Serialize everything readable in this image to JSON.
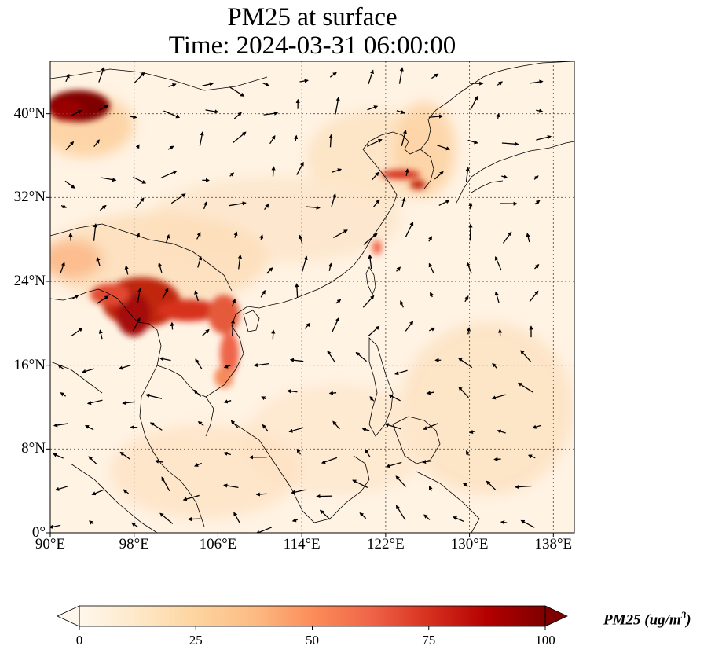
{
  "figure": {
    "title_line1": "PM25 at surface",
    "title_line2": "Time: 2024-03-31 06:00:00"
  },
  "map": {
    "variable": "PM25",
    "extent": {
      "lon": [
        90,
        140
      ],
      "lat": [
        0,
        45
      ]
    },
    "gridlines": "dotted",
    "lat_ticks": [
      {
        "value": 40,
        "label": "40°N"
      },
      {
        "value": 32,
        "label": "32°N"
      },
      {
        "value": 24,
        "label": "24°N"
      },
      {
        "value": 16,
        "label": "16°N"
      },
      {
        "value": 8,
        "label": "8°N"
      },
      {
        "value": 0,
        "label": "0°"
      }
    ],
    "lon_ticks": [
      {
        "value": 90,
        "label": "90°E"
      },
      {
        "value": 98,
        "label": "98°E"
      },
      {
        "value": 106,
        "label": "106°E"
      },
      {
        "value": 114,
        "label": "114°E"
      },
      {
        "value": 122,
        "label": "122°E"
      },
      {
        "value": 130,
        "label": "130°E"
      },
      {
        "value": 138,
        "label": "138°E"
      }
    ],
    "overlay": "wind vectors (arrows)",
    "high_concentration_regions": [
      {
        "name": "northwest corner",
        "lon": 92,
        "lat": 41,
        "level": 100
      },
      {
        "name": "Myanmar / northern Thailand / Laos",
        "lon": 100,
        "lat": 21,
        "level": 85
      },
      {
        "name": "northern Vietnam",
        "lon": 107,
        "lat": 20,
        "level": 65
      },
      {
        "name": "Shandong coast",
        "lon": 123,
        "lat": 34,
        "level": 70
      },
      {
        "name": "Taiwan Strait",
        "lon": 120.5,
        "lat": 27,
        "level": 60
      }
    ]
  },
  "colorbar": {
    "colormap": "OrRd",
    "colors": [
      "#fff7ec",
      "#fee8c8",
      "#fdd49e",
      "#fdbb84",
      "#fc8d59",
      "#ef6548",
      "#d7301f",
      "#b30000",
      "#7f0000"
    ],
    "min": 0,
    "max": 100,
    "extend": "both",
    "ticks": [
      "0",
      "25",
      "50",
      "75",
      "100"
    ],
    "label": "PM25 (ug/m",
    "label_sup": "3",
    "label_close": ")"
  }
}
